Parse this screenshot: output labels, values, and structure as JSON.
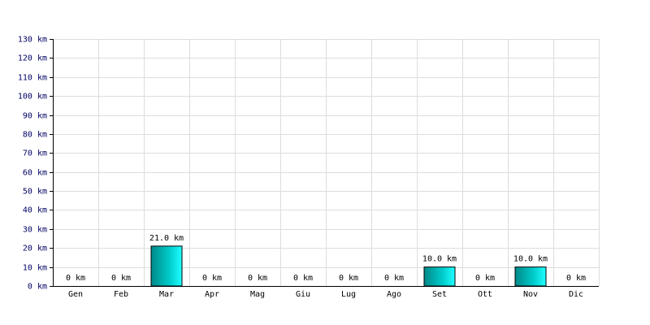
{
  "chart_data": {
    "type": "bar",
    "categories": [
      "Gen",
      "Feb",
      "Mar",
      "Apr",
      "Mag",
      "Giu",
      "Lug",
      "Ago",
      "Set",
      "Ott",
      "Nov",
      "Dic"
    ],
    "values": [
      0,
      0,
      21,
      0,
      0,
      0,
      0,
      0,
      10,
      0,
      10,
      0
    ],
    "value_labels": [
      "0 km",
      "0 km",
      "21.0 km",
      "0 km",
      "0 km",
      "0 km",
      "0 km",
      "0 km",
      "10.0 km",
      "0 km",
      "10.0 km",
      "0 km"
    ],
    "color": "#00cccc",
    "ylim": [
      0,
      130
    ],
    "yticks": [
      {
        "value": 0,
        "label": "0 km"
      },
      {
        "value": 10,
        "label": "10 km"
      },
      {
        "value": 20,
        "label": "20 km"
      },
      {
        "value": 30,
        "label": "30 km"
      },
      {
        "value": 40,
        "label": "40 km"
      },
      {
        "value": 50,
        "label": "50 km"
      },
      {
        "value": 60,
        "label": "60 km"
      },
      {
        "value": 70,
        "label": "70 km"
      },
      {
        "value": 80,
        "label": "80 km"
      },
      {
        "value": 90,
        "label": "90 km"
      },
      {
        "value": 100,
        "label": "100 km"
      },
      {
        "value": 110,
        "label": "110 km"
      },
      {
        "value": 120,
        "label": "120 km"
      },
      {
        "value": 130,
        "label": "130 km"
      }
    ],
    "grid": true
  }
}
